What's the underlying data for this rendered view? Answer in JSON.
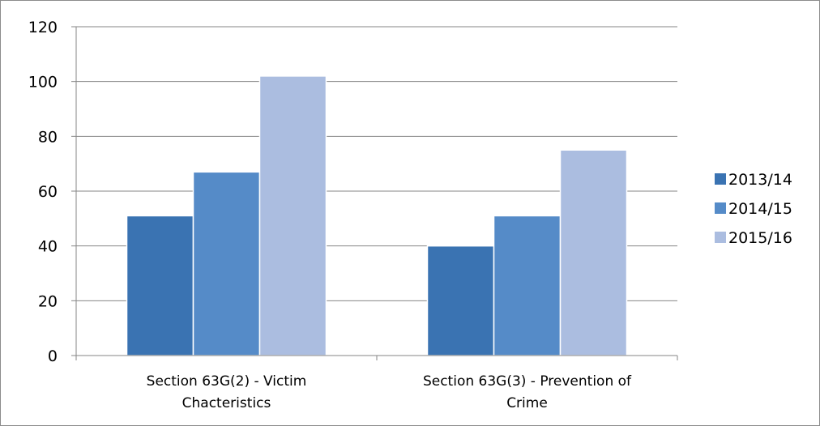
{
  "chart_data": {
    "type": "bar",
    "title": "",
    "xlabel": "",
    "ylabel": "",
    "categories": [
      [
        "Section 63G(2) - Victim",
        "Chacteristics"
      ],
      [
        "Section 63G(3) - Prevention of",
        "Crime"
      ]
    ],
    "series": [
      {
        "name": "2013/14",
        "values": [
          51,
          40
        ],
        "color": "#3a73b2"
      },
      {
        "name": "2014/15",
        "values": [
          67,
          51
        ],
        "color": "#558bc8"
      },
      {
        "name": "2015/16",
        "values": [
          102,
          75
        ],
        "color": "#abbde0"
      }
    ],
    "ylim": [
      0,
      120
    ],
    "yticks": [
      "0",
      "20",
      "40",
      "60",
      "80",
      "100",
      "120"
    ],
    "grid": true,
    "legend_position": "right"
  }
}
